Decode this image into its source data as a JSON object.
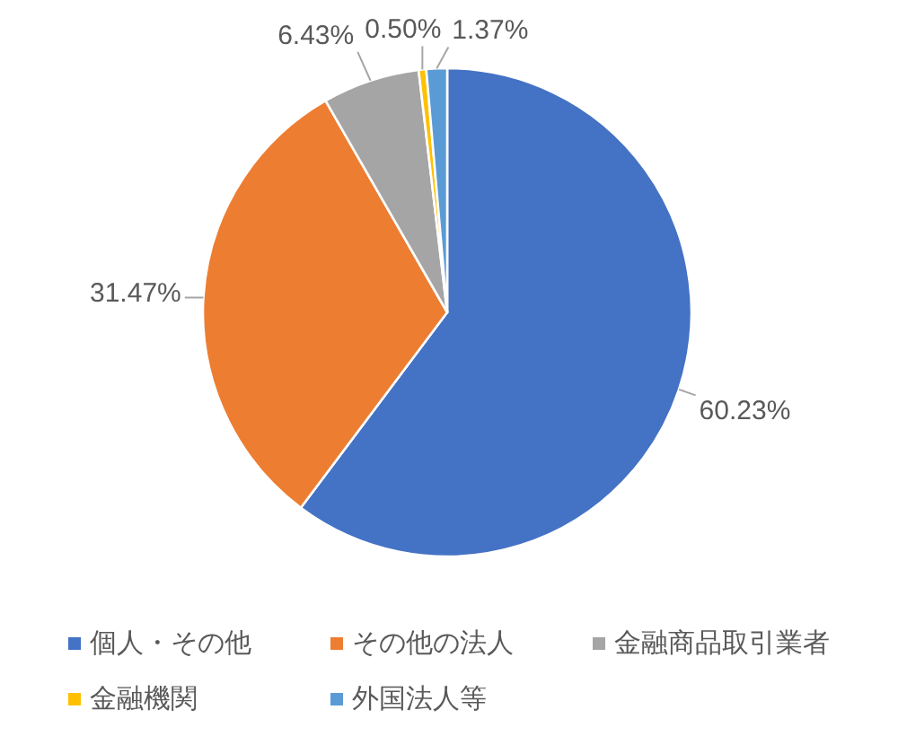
{
  "chart_data": {
    "type": "pie",
    "categories": [
      "個人・その他",
      "その他の法人",
      "金融商品取引業者",
      "金融機関",
      "外国法人等"
    ],
    "values": [
      60.23,
      31.47,
      6.43,
      0.5,
      1.37
    ],
    "colors": [
      "#4472c4",
      "#ed7d31",
      "#a5a5a5",
      "#ffc000",
      "#5b9bd5"
    ],
    "value_labels": [
      "60.23%",
      "31.47%",
      "6.43%",
      "0.50%",
      "1.37%"
    ],
    "legend": "bottom"
  }
}
